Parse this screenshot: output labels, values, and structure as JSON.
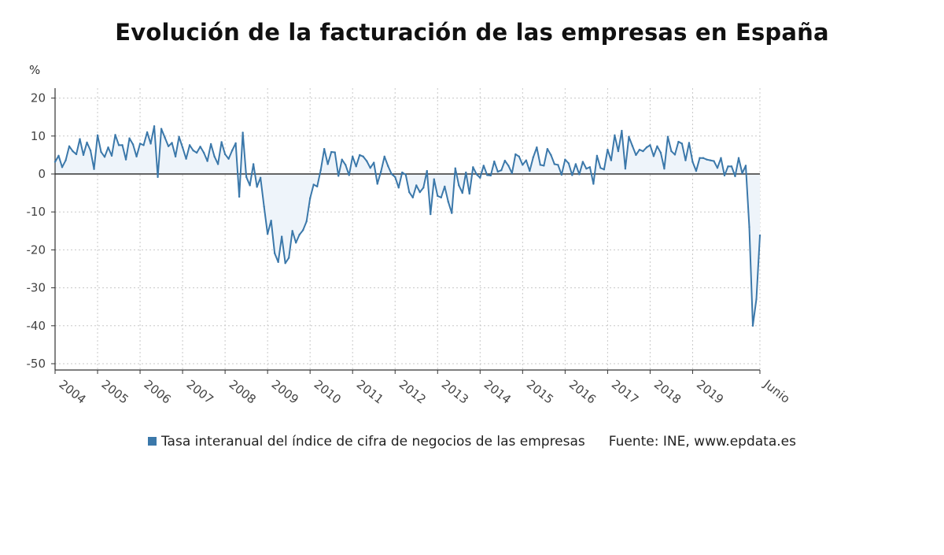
{
  "title": "Evolución de la facturación de las empresas en España",
  "unit_label": "%",
  "legend": {
    "series_label": "Tasa interanual del índice de cifra de negocios de las empresas",
    "source": "Fuente: INE, www.epdata.es"
  },
  "colors": {
    "line": "#3b78aa",
    "fill": "#eef4fa",
    "zero_line": "#333333",
    "grid": "#c8c8c8"
  },
  "chart_data": {
    "type": "line",
    "title": "Evolución de la facturación de las empresas en España",
    "ylabel": "%",
    "ylim": [
      -52,
      23
    ],
    "y_ticks": [
      20,
      10,
      0,
      -10,
      -20,
      -30,
      -40,
      -50
    ],
    "x_tick_labels": [
      "2004",
      "2005",
      "2006",
      "2007",
      "2008",
      "2009",
      "2010",
      "2011",
      "2012",
      "2013",
      "2014",
      "2015",
      "2016",
      "2017",
      "2018",
      "2019",
      "Junio"
    ],
    "x_start": "2004-01",
    "x_end": "2020-06",
    "grid": true,
    "legend_position": "bottom",
    "series": [
      {
        "name": "Tasa interanual del índice de cifra de negocios de las empresas",
        "frequency": "monthly",
        "values": [
          3.2,
          4.8,
          1.8,
          3.6,
          7.3,
          6.0,
          5.2,
          9.2,
          5.0,
          8.3,
          6.2,
          1.3,
          10.2,
          5.8,
          4.5,
          7.0,
          4.8,
          10.3,
          7.6,
          7.6,
          3.8,
          9.4,
          7.8,
          4.6,
          8.0,
          7.6,
          11.0,
          8.0,
          12.6,
          -0.8,
          11.9,
          9.6,
          7.3,
          8.2,
          4.6,
          9.8,
          7.0,
          4.0,
          7.6,
          6.2,
          5.6,
          7.2,
          5.6,
          3.4,
          7.9,
          4.6,
          2.6,
          8.4,
          5.2,
          4.0,
          6.2,
          8.1,
          -6.0,
          10.9,
          -0.8,
          -3.0,
          2.6,
          -3.4,
          -1.0,
          -8.6,
          -15.8,
          -12.3,
          -20.9,
          -23.2,
          -16.5,
          -23.5,
          -22.1,
          -15.0,
          -18.1,
          -16.0,
          -14.8,
          -12.5,
          -6.4,
          -2.8,
          -3.3,
          1.0,
          6.6,
          2.6,
          5.8,
          5.7,
          -0.5,
          3.8,
          2.4,
          -0.3,
          4.6,
          2.0,
          5.0,
          4.6,
          3.4,
          1.6,
          3.0,
          -2.6,
          0.6,
          4.6,
          2.1,
          0.0,
          -0.8,
          -3.6,
          0.4,
          -0.2,
          -4.8,
          -6.2,
          -3.0,
          -4.8,
          -3.6,
          0.8,
          -10.6,
          -1.4,
          -5.8,
          -6.2,
          -3.3,
          -7.3,
          -10.3,
          1.5,
          -3.0,
          -5.0,
          0.4,
          -5.2,
          1.8,
          -0.1,
          -1.0,
          2.2,
          -0.3,
          -0.4,
          3.3,
          0.6,
          1.0,
          3.5,
          2.2,
          0.2,
          5.2,
          4.6,
          2.4,
          3.6,
          0.8,
          4.4,
          7.0,
          2.4,
          2.2,
          6.6,
          5.0,
          2.6,
          2.4,
          -0.2,
          3.8,
          2.8,
          -0.3,
          2.6,
          -0.1,
          3.2,
          1.4,
          1.8,
          -2.6,
          4.8,
          1.6,
          1.2,
          6.4,
          3.6,
          10.2,
          6.0,
          11.4,
          1.4,
          9.8,
          7.4,
          5.0,
          6.4,
          6.0,
          7.0,
          7.6,
          4.7,
          7.3,
          5.6,
          1.4,
          9.8,
          6.0,
          5.1,
          8.5,
          8.0,
          3.6,
          8.2,
          3.2,
          0.8,
          4.2,
          4.2,
          3.8,
          3.6,
          3.4,
          1.6,
          4.2,
          -0.4,
          2.0,
          2.0,
          -0.6,
          4.2,
          0.2,
          2.2,
          -14.0,
          -40.0,
          -33.0,
          -16.2
        ]
      }
    ]
  }
}
